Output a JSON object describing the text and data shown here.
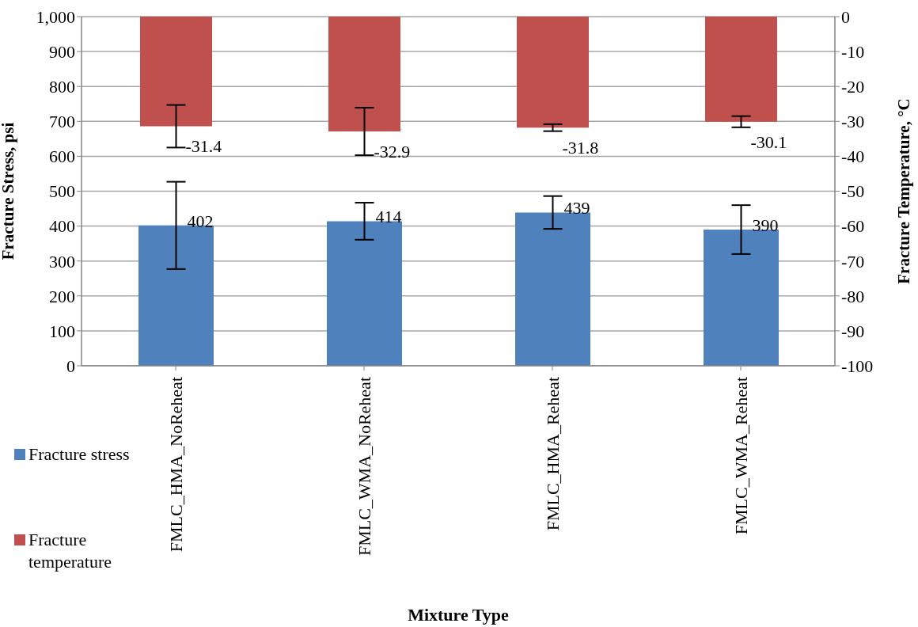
{
  "chart_data": {
    "type": "bar",
    "xlabel": "Mixture Type",
    "ylabel": "Fracture Stress, psi",
    "y2label": "Fracture Temperature, °C",
    "categories": [
      "FMLC_HMA_NoReheat",
      "FMLC_WMA_NoReheat",
      "FMLC_HMA_Reheat",
      "FMLC_WMA_Reheat"
    ],
    "series": [
      {
        "name": "Fracture stress",
        "color": "#4f81bd",
        "values": [
          402,
          414,
          439,
          390
        ],
        "errors": [
          125,
          53,
          47,
          70
        ]
      },
      {
        "name": "Fracture temperature",
        "color": "#c0504d",
        "axis": "y2",
        "values": [
          -31.4,
          -32.9,
          -31.8,
          -30.1
        ],
        "errors": [
          6.1,
          6.8,
          1.0,
          1.6
        ]
      }
    ],
    "ylim": [
      0,
      1000
    ],
    "yticks": [
      0,
      100,
      200,
      300,
      400,
      500,
      600,
      700,
      800,
      900,
      {
        "value": 1000,
        "label": "1,000"
      }
    ],
    "y2lim": [
      -100,
      0
    ],
    "y2ticks": [
      -100,
      -90,
      -80,
      -70,
      -60,
      -50,
      -40,
      -30,
      -20,
      -10,
      0
    ],
    "grid": "y",
    "legend": "left",
    "data_labels": true
  }
}
